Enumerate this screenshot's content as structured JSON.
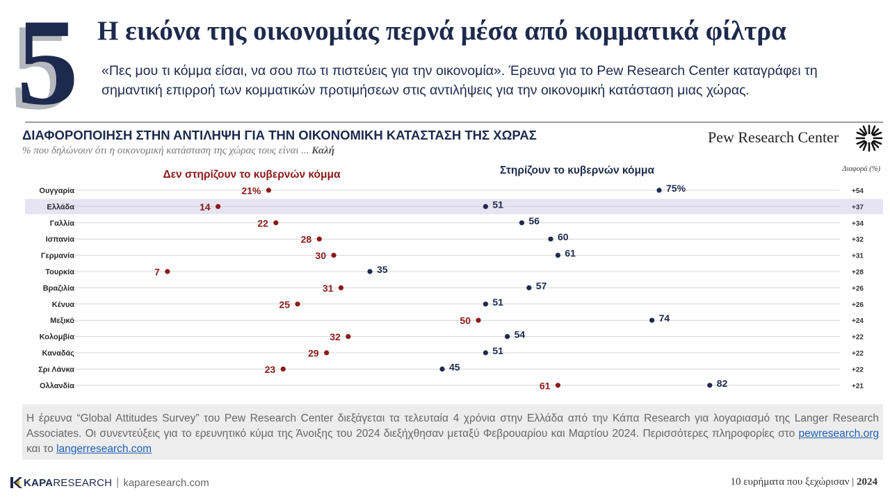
{
  "header": {
    "number": "5",
    "title": "Η εικόνα της οικονομίας περνά μέσα από κομματικά φίλτρα",
    "subtitle": "«Πες μου τι κόμμα είσαι, να σου πω τι πιστεύεις για την οικονομία». Έρευνα για το Pew Research Center καταγράφει τη σημαντική επιρροή των κομματικών προτιμήσεων στις αντιλήψεις για την οικονομική κατάσταση μιας χώρας."
  },
  "chart_header": {
    "title": "ΔΙΑΦΟΡΟΠΟΙΗΣΗ ΣΤΗΝ ΑΝΤΙΛΗΨΗ ΓΙΑ ΤΗΝ ΟΙΚΟΝΟΜΙΚΗ ΚΑΤΑΣΤΑΣΗ ΤΗΣ ΧΩΡΑΣ",
    "subtitle_prefix": "% που δηλώνουν ότι η οικονομική κατάσταση της χώρας τους είναι ...",
    "subtitle_emphasis": "Καλή",
    "source_logo": "Pew Research Center"
  },
  "chart_data": {
    "type": "scatter",
    "subtype": "dot-plot",
    "categories": [
      "Ουγγαρία",
      "Ελλάδα",
      "Γαλλία",
      "Ισπανία",
      "Γερμανία",
      "Τουρκία",
      "Βραζιλία",
      "Κένυα",
      "Μεξικό",
      "Κολομβία",
      "Καναδάς",
      "Σρι Λάνκα",
      "Ολλανδία"
    ],
    "series": [
      {
        "name": "Δεν στηρίζουν το κυβερνών κόμμα",
        "color": "#8b1a1a",
        "values": [
          21,
          14,
          22,
          28,
          30,
          7,
          31,
          25,
          50,
          32,
          29,
          23,
          61
        ],
        "labels": [
          "21%",
          "14",
          "22",
          "28",
          "30",
          "7",
          "31",
          "25",
          "50",
          "32",
          "29",
          "23",
          "61"
        ]
      },
      {
        "name": "Στηρίζουν το κυβερνών κόμμα",
        "color": "#1d2a4d",
        "values": [
          75,
          51,
          56,
          60,
          61,
          35,
          57,
          51,
          74,
          54,
          51,
          45,
          82
        ],
        "labels": [
          "75%",
          "51",
          "56",
          "60",
          "61",
          "35",
          "57",
          "51",
          "74",
          "54",
          "51",
          "45",
          "82"
        ]
      }
    ],
    "diff_header": "Διαφορά (%)",
    "differences": [
      "+54",
      "+37",
      "+34",
      "+32",
      "+31",
      "+28",
      "+26",
      "+26",
      "+24",
      "+22",
      "+22",
      "+22",
      "+21"
    ],
    "highlight_category": "Ελλάδα",
    "highlight_color": "#e6e4f2",
    "xlim": [
      0,
      100
    ]
  },
  "footnote": {
    "text": "Η έρευνα “Global Attitudes Survey” του Pew Research Center διεξάγεται τα τελευταία 4 χρόνια στην Ελλάδα από την Κάπα Research για λογαριασμό της Langer Research Associates. Οι συνεντεύξεις για το ερευνητικό κύμα της Άνοιξης του 2024 διεξήχθησαν μεταξύ Φεβρουαρίου και Μαρτίου 2024. Περισσότερες πληροφορίες στο",
    "link1": "pewresearch.org",
    "connector": "και το",
    "link2": "langerresearch.com"
  },
  "footer": {
    "brand_bold": "KAPA",
    "brand_rest": "RESEARCH",
    "separator": "|",
    "url": "kaparesearch.com",
    "right_text": "10 ευρήματα που ξεχώρισαν |",
    "year": "2024"
  }
}
